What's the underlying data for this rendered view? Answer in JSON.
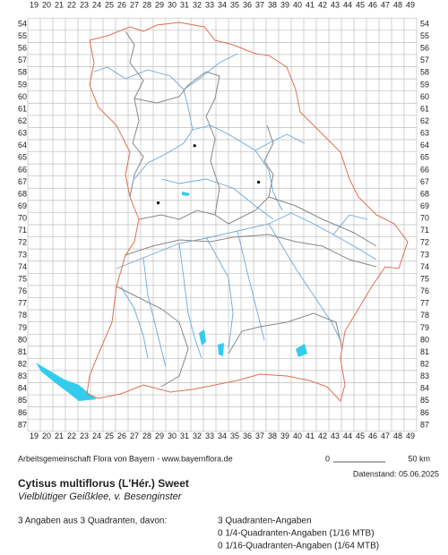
{
  "map": {
    "columns": [
      19,
      20,
      21,
      22,
      23,
      24,
      25,
      26,
      27,
      28,
      29,
      30,
      31,
      32,
      33,
      34,
      35,
      36,
      37,
      38,
      39,
      40,
      41,
      42,
      43,
      44,
      45,
      46,
      47,
      48,
      49
    ],
    "rows": [
      54,
      55,
      56,
      57,
      58,
      59,
      60,
      61,
      62,
      63,
      64,
      65,
      66,
      67,
      68,
      69,
      70,
      71,
      72,
      73,
      74,
      75,
      76,
      77,
      78,
      79,
      80,
      81,
      82,
      83,
      84,
      85,
      86,
      87
    ],
    "points": [
      {
        "x": 31.8,
        "y": 64
      },
      {
        "x": 36.9,
        "y": 67
      },
      {
        "x": 28.9,
        "y": 68.7
      }
    ]
  },
  "footer": {
    "credit": "Arbeitsgemeinschaft Flora von Bayern - www.bayernflora.de",
    "scale_start": "0",
    "scale_end": "50 km",
    "date": "Datenstand: 05.06.2025",
    "title": "Cytisus multiflorus (L'Hér.) Sweet",
    "subtitle": "Vielblütiger Geißklee, v. Besenginster",
    "summary": "3 Angaben aus 3 Quadranten, davon:",
    "details": [
      "3 Quadranten-Angaben",
      "0 1/4-Quadranten-Angaben (1/16 MTB)",
      "0 1/16-Quadranten-Angaben (1/64 MTB)"
    ]
  }
}
